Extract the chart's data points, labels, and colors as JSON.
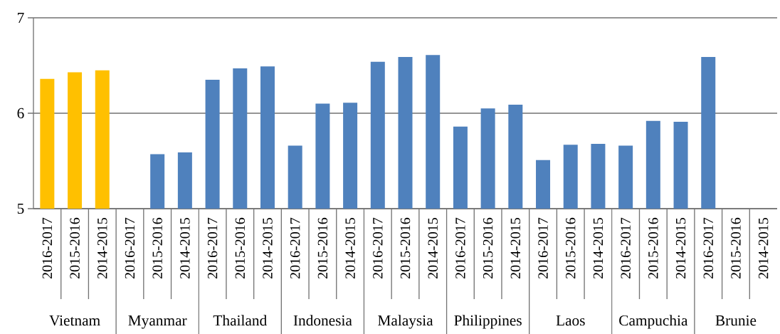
{
  "chart_data": {
    "type": "bar",
    "categories": [
      "2016-2017",
      "2015-2016",
      "2014-2015",
      "2016-2017",
      "2015-2016",
      "2014-2015",
      "2016-2017",
      "2015-2016",
      "2014-2015",
      "2016-2017",
      "2015-2016",
      "2014-2015",
      "2016-2017",
      "2015-2016",
      "2014-2015",
      "2016-2017",
      "2015-2016",
      "2014-2015",
      "2016-2017",
      "2015-2016",
      "2014-2015",
      "2016-2017",
      "2015-2016",
      "2014-2015",
      "2016-2017",
      "2015-2016",
      "2014-2015"
    ],
    "values": [
      6.36,
      6.43,
      6.45,
      null,
      5.57,
      5.59,
      6.35,
      6.47,
      6.49,
      5.66,
      6.1,
      6.11,
      6.54,
      6.59,
      6.61,
      5.86,
      6.05,
      6.09,
      5.51,
      5.67,
      5.68,
      5.66,
      5.92,
      5.91,
      6.59,
      5.0,
      null
    ],
    "colors": [
      "#ffc000",
      "#ffc000",
      "#ffc000",
      "#4f81bd",
      "#4f81bd",
      "#4f81bd",
      "#4f81bd",
      "#4f81bd",
      "#4f81bd",
      "#4f81bd",
      "#4f81bd",
      "#4f81bd",
      "#4f81bd",
      "#4f81bd",
      "#4f81bd",
      "#4f81bd",
      "#4f81bd",
      "#4f81bd",
      "#4f81bd",
      "#4f81bd",
      "#4f81bd",
      "#4f81bd",
      "#4f81bd",
      "#4f81bd",
      "#4f81bd",
      "#4f81bd",
      "#4f81bd"
    ],
    "ylim": [
      5,
      7
    ],
    "yticks": [
      5,
      6,
      7
    ],
    "grid": "y",
    "annotations": [
      "Vietnam",
      "Myanmar",
      "Thailand",
      "Indonesia",
      "Malaysia",
      "Philippines",
      "Laos",
      "Campuchia",
      "Brunie"
    ]
  }
}
